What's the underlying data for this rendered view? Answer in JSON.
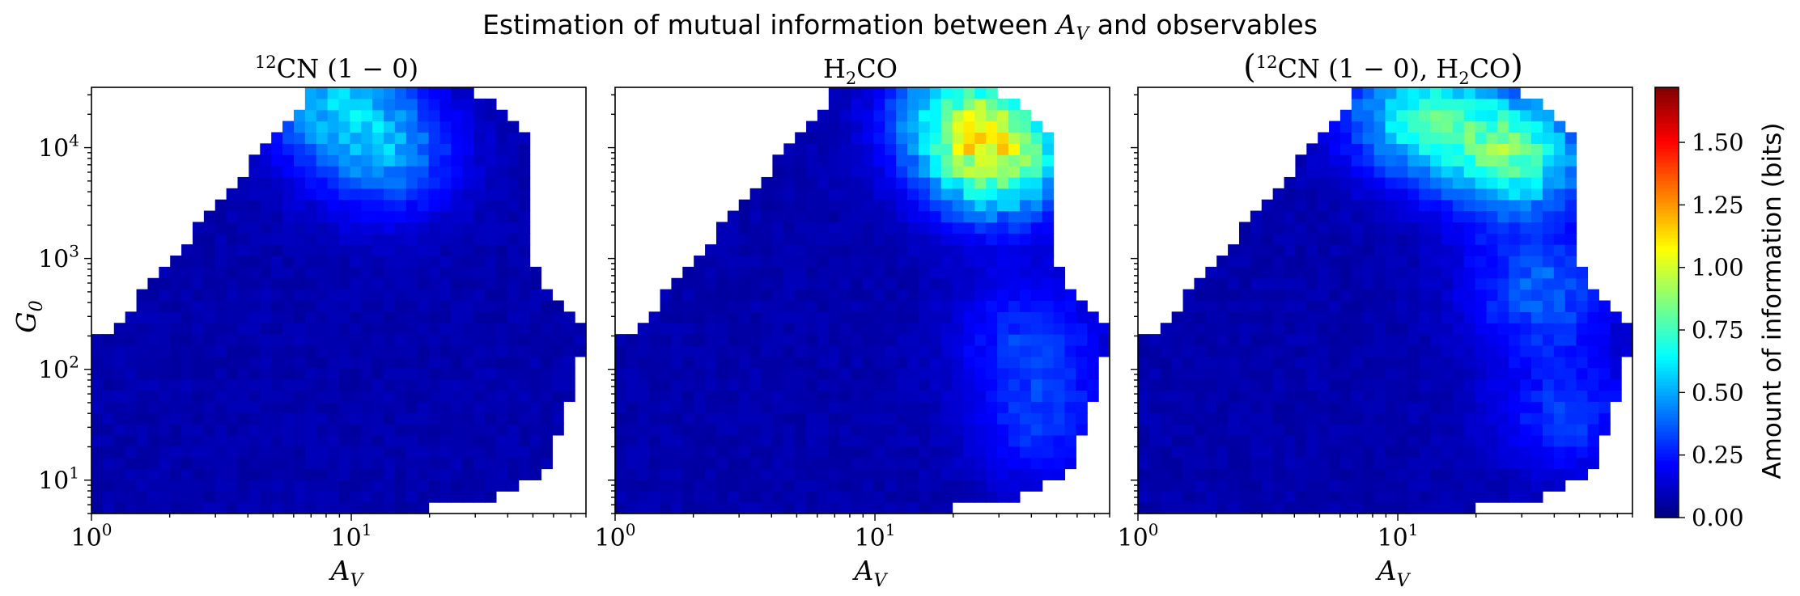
{
  "figure": {
    "suptitle_text": "Estimation of mutual information between ",
    "suptitle_var": "A",
    "suptitle_var_sub": "V",
    "suptitle_tail": " and observables",
    "colorbar_label": "Amount of information (bits)"
  },
  "colors": {
    "colormap": "jet",
    "background": "#ffffff"
  },
  "chart_data": [
    {
      "type": "heatmap",
      "title": "12CN (1 − 0)",
      "title_parts": {
        "sup": "12",
        "main": "CN (1 − 0)"
      },
      "xlabel": "A_V",
      "ylabel": "G_0",
      "xscale": "log",
      "yscale": "log",
      "xlim": [
        1,
        80
      ],
      "ylim": [
        5,
        35000
      ],
      "x_ticks": [
        "10^0",
        "10^1"
      ],
      "y_ticks": [
        "10^1",
        "10^2",
        "10^3",
        "10^4"
      ],
      "hotspots": [
        {
          "x": 9,
          "y": 25000,
          "value": 0.42
        },
        {
          "x": 14,
          "y": 8000,
          "value": 0.3
        }
      ]
    },
    {
      "type": "heatmap",
      "title": "H2CO",
      "title_parts": {
        "main_a": "H",
        "sub": "2",
        "main_b": "CO"
      },
      "xlabel": "A_V",
      "ylabel": "",
      "xscale": "log",
      "yscale": "log",
      "xlim": [
        1,
        80
      ],
      "ylim": [
        5,
        35000
      ],
      "x_ticks": [
        "10^0",
        "10^1"
      ],
      "y_ticks": [],
      "hotspots": [
        {
          "x": 30,
          "y": 8000,
          "value": 0.72
        },
        {
          "x": 22,
          "y": 20000,
          "value": 0.5
        },
        {
          "x": 40,
          "y": 200,
          "value": 0.22
        },
        {
          "x": 45,
          "y": 30,
          "value": 0.2
        }
      ]
    },
    {
      "type": "heatmap",
      "title": "(12CN (1 − 0), H2CO)",
      "title_parts": {
        "open": "(",
        "sup": "12",
        "main": "CN (1 − 0), H",
        "sub": "2",
        "tail": "CO",
        "close": ")"
      },
      "xlabel": "A_V",
      "ylabel": "",
      "xscale": "log",
      "yscale": "log",
      "xlim": [
        1,
        80
      ],
      "ylim": [
        5,
        35000
      ],
      "x_ticks": [
        "10^0",
        "10^1"
      ],
      "y_ticks": [],
      "hotspots": [
        {
          "x": 12,
          "y": 20000,
          "value": 0.55
        },
        {
          "x": 28,
          "y": 9000,
          "value": 0.68
        },
        {
          "x": 35,
          "y": 500,
          "value": 0.3
        },
        {
          "x": 45,
          "y": 40,
          "value": 0.22
        }
      ]
    }
  ],
  "colorbar": {
    "vmin": 0.0,
    "vmax": 1.72,
    "ticks": [
      "0.00",
      "0.25",
      "0.50",
      "0.75",
      "1.00",
      "1.25",
      "1.50"
    ]
  }
}
